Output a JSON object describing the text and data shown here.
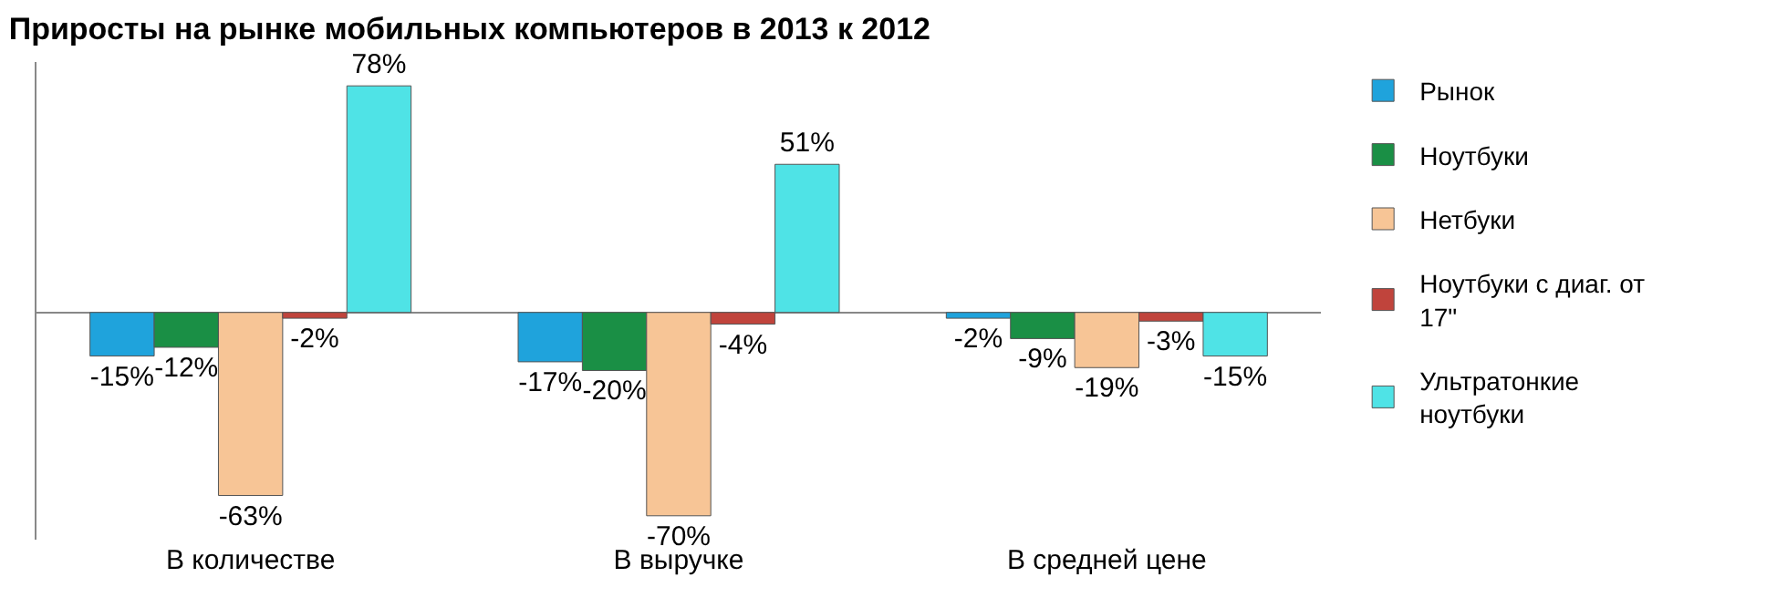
{
  "chart_data": {
    "type": "bar",
    "title": "Приросты на рынке мобильных компьютеров в 2013 к 2012",
    "categories": [
      "В количестве",
      "В выручке",
      "В средней цене"
    ],
    "series": [
      {
        "name": "Рынок",
        "color": "#1fa3dc",
        "values": [
          -15,
          -17,
          -2
        ],
        "value_labels": [
          "-15%",
          "-17%",
          "-2%"
        ]
      },
      {
        "name": "Ноутбуки",
        "color": "#1a8f45",
        "values": [
          -12,
          -20,
          -9
        ],
        "value_labels": [
          "-12%",
          "-20%",
          "-9%"
        ]
      },
      {
        "name": "Нетбуки",
        "color": "#f7c596",
        "values": [
          -63,
          -70,
          -19
        ],
        "value_labels": [
          "-63%",
          "-70%",
          "-19%"
        ]
      },
      {
        "name": "Ноутбуки с диаг. от 17\"",
        "color": "#c0443c",
        "values": [
          -2,
          -4,
          -3
        ],
        "value_labels": [
          "-2%",
          "-4%",
          "-3%"
        ]
      },
      {
        "name": "Ультратонкие ноутбуки",
        "color": "#4fe3e6",
        "values": [
          78,
          51,
          -15
        ],
        "value_labels": [
          "78%",
          "51%",
          "-15%"
        ]
      }
    ],
    "legend": "right"
  }
}
